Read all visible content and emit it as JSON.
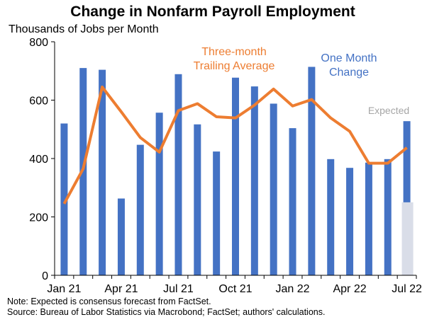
{
  "chart_data": {
    "type": "bar",
    "title": "Change in Nonfarm Payroll Employment",
    "ylabel": "Thousands of Jobs per Month",
    "ylim": [
      0,
      800
    ],
    "yticks": [
      0,
      200,
      400,
      600,
      800
    ],
    "categories": [
      "Jan 21",
      "Feb 21",
      "Mar 21",
      "Apr 21",
      "May 21",
      "Jun 21",
      "Jul 21",
      "Aug 21",
      "Sep 21",
      "Oct 21",
      "Nov 21",
      "Dec 21",
      "Jan 22",
      "Feb 22",
      "Mar 22",
      "Apr 22",
      "May 22",
      "Jun 22",
      "Jul 22"
    ],
    "xtick_labels": [
      {
        "index": 0,
        "label": "Jan 21"
      },
      {
        "index": 3,
        "label": "Apr 21"
      },
      {
        "index": 6,
        "label": "Jul 21"
      },
      {
        "index": 9,
        "label": "Oct 21"
      },
      {
        "index": 12,
        "label": "Jan 22"
      },
      {
        "index": 15,
        "label": "Apr 22"
      },
      {
        "index": 18,
        "label": "Jul 22"
      }
    ],
    "series": [
      {
        "name": "One Month Change",
        "type": "bar",
        "color": "#4472C4",
        "values": [
          520,
          710,
          704,
          263,
          447,
          557,
          689,
          517,
          424,
          677,
          647,
          588,
          504,
          714,
          398,
          368,
          386,
          398,
          528
        ]
      },
      {
        "name": "Three-month Trailing Average",
        "type": "line",
        "color": "#ED7D31",
        "values": [
          245,
          365,
          645,
          560,
          472,
          422,
          564,
          588,
          543,
          539,
          583,
          638,
          580,
          602,
          539,
          493,
          384,
          384,
          437
        ]
      },
      {
        "name": "Expected",
        "type": "bar",
        "color": "#D9DDE8",
        "values": [
          null,
          null,
          null,
          null,
          null,
          null,
          null,
          null,
          null,
          null,
          null,
          null,
          null,
          null,
          null,
          null,
          null,
          null,
          250
        ]
      }
    ],
    "annotations": {
      "avg_label_line1": "Three-month",
      "avg_label_line2": "Trailing Average",
      "bar_label_line1": "One Month",
      "bar_label_line2": "Change",
      "expected_label": "Expected"
    },
    "grid": false
  },
  "notes": {
    "note": "Note: Expected is consensus forecast from FactSet.",
    "source": "Source: Bureau of Labor Statistics via Macrobond; FactSet; authors' calculations."
  }
}
